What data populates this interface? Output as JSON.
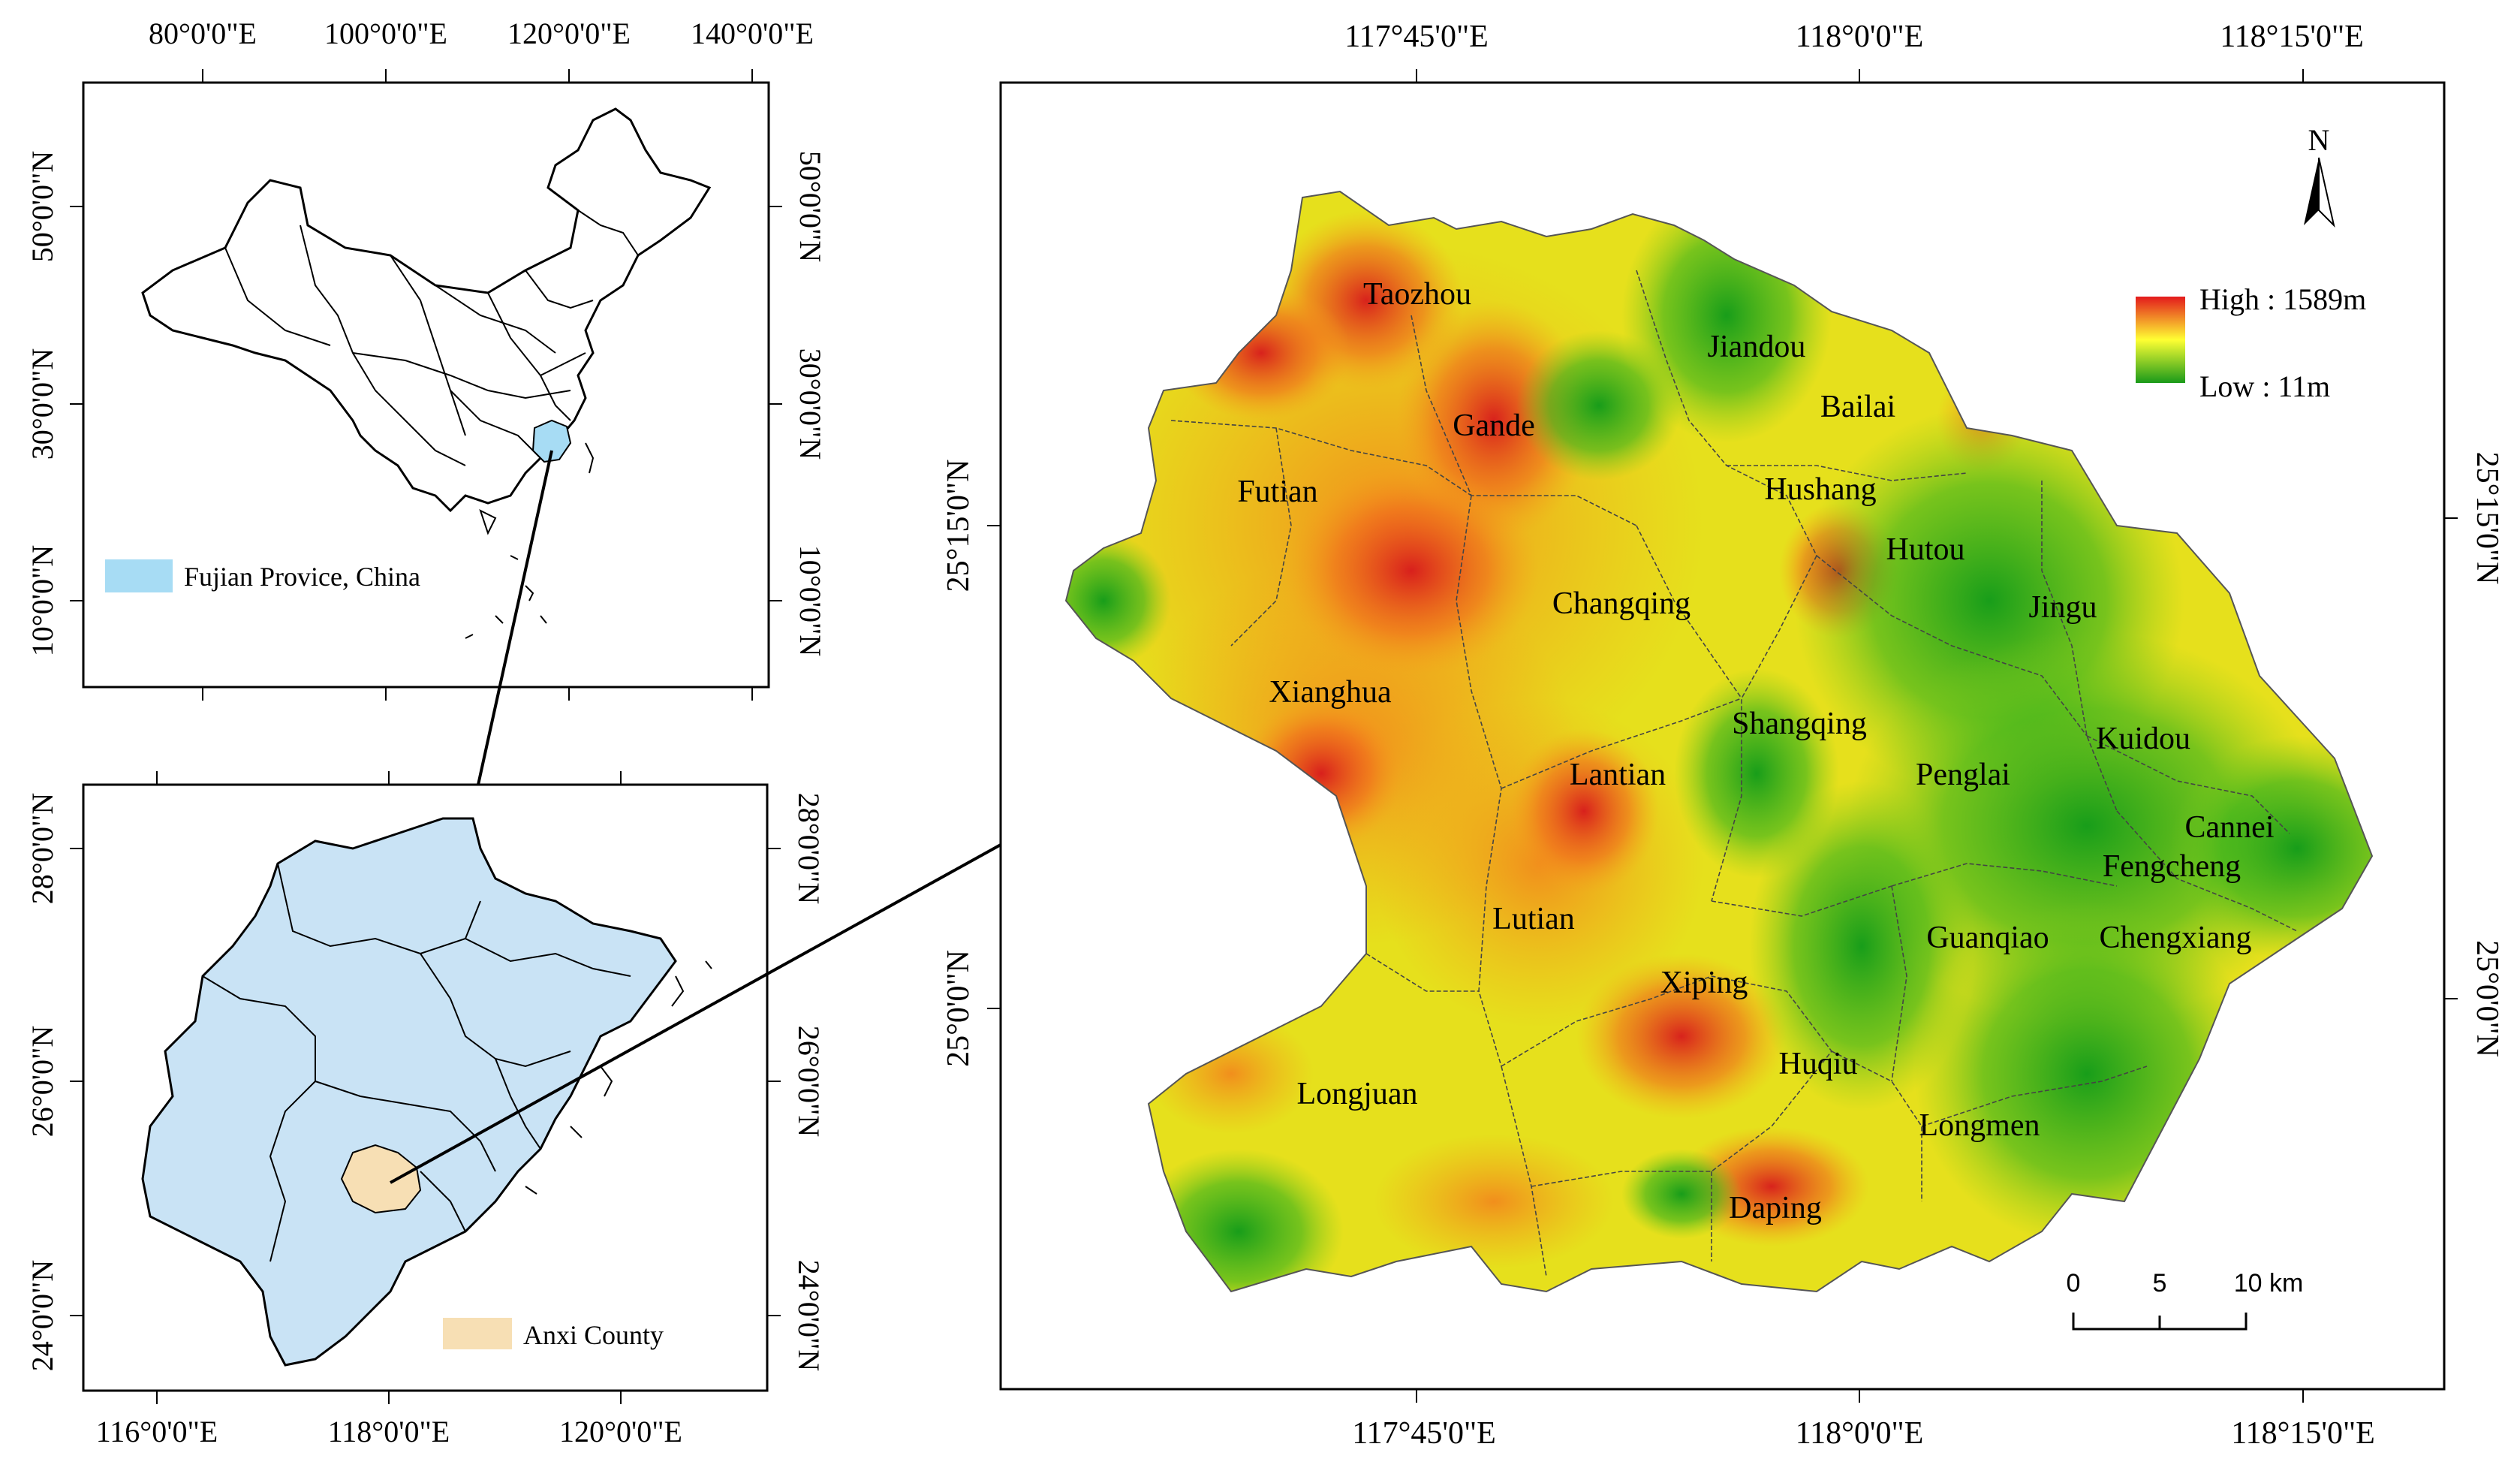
{
  "china_inset": {
    "top_ticks": [
      "80°0'0\"E",
      "100°0'0\"E",
      "120°0'0\"E",
      "140°0'0\"E"
    ],
    "lat_ticks": [
      "50°0'0\"N",
      "30°0'0\"N",
      "10°0'0\"N"
    ],
    "legend_label": "Fujian Provice, China",
    "legend_color": "#a7dcf4"
  },
  "fujian_inset": {
    "bottom_ticks": [
      "116°0'0\"E",
      "118°0'0\"E",
      "120°0'0\"E"
    ],
    "lat_ticks": [
      "28°0'0\"N",
      "26°0'0\"N",
      "24°0'0\"N"
    ],
    "legend_label": "Anxi County",
    "fill_color": "#c9e3f5",
    "county_color": "#f7dfb4"
  },
  "main_map": {
    "top_ticks": [
      "117°45'0\"E",
      "118°0'0\"E",
      "118°15'0\"E"
    ],
    "bottom_ticks": [
      "117°45'0\"E",
      "118°0'0\"E",
      "118°15'0\"E"
    ],
    "left_ticks": [
      "25°15'0\"N",
      "25°0'0\"N"
    ],
    "right_ticks": [
      "25°15'0\"N",
      "25°0'0\"N"
    ],
    "north_label": "N",
    "legend_high": "High : 1589m",
    "legend_low": "Low : 11m",
    "scale_labels": [
      "0",
      "5",
      "10 km"
    ],
    "colors": {
      "high": "#e31a1c",
      "mid": "#ffff33",
      "low": "#1a9a1a"
    },
    "towns": [
      "Taozhou",
      "Jiandou",
      "Bailai",
      "Gande",
      "Futian",
      "Hushang",
      "Hutou",
      "Changqing",
      "Jingu",
      "Xianghua",
      "Shangqing",
      "Kuidou",
      "Lantian",
      "Penglai",
      "Cannei",
      "Fengcheng",
      "Lutian",
      "Guanqiao",
      "Chengxiang",
      "Xiping",
      "Huqiu",
      "Longjuan",
      "Longmen",
      "Daping"
    ]
  }
}
